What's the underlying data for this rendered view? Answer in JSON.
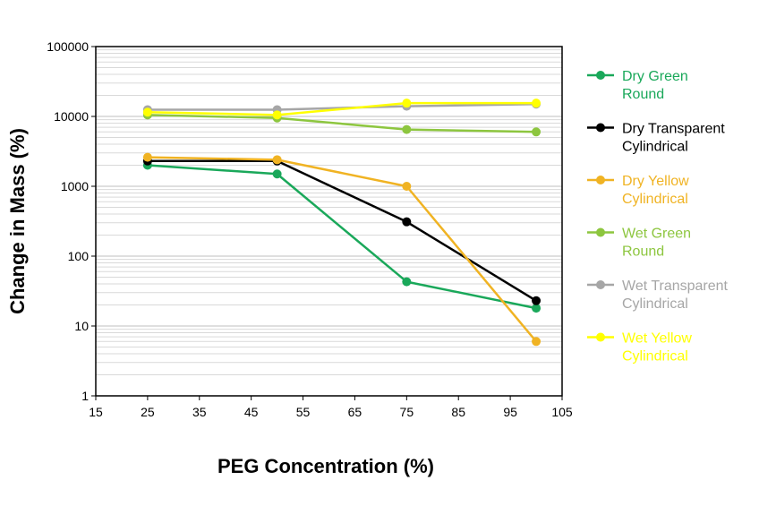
{
  "chart_data": {
    "type": "line",
    "title": "",
    "xlabel": "PEG Concentration (%)",
    "ylabel": "Change in Mass (%)",
    "xlim": [
      15,
      105
    ],
    "ylim": [
      1,
      100000
    ],
    "yscale": "log",
    "x_ticks": [
      "15",
      "25",
      "35",
      "45",
      "55",
      "65",
      "75",
      "85",
      "95",
      "105"
    ],
    "y_ticks": [
      "1",
      "10",
      "100",
      "1000",
      "10000",
      "100000"
    ],
    "grid": true,
    "legend_position": "right",
    "x": [
      25,
      50,
      75,
      100
    ],
    "series": [
      {
        "name": "Dry Green Round",
        "legend_lines": [
          "Dry Green",
          "Round"
        ],
        "color": "#1aa85a",
        "values": [
          2000,
          1500,
          43,
          18
        ]
      },
      {
        "name": "Dry Transparent Cylindrical",
        "legend_lines": [
          "Dry Transparent",
          "Cylindrical"
        ],
        "color": "#000000",
        "values": [
          2300,
          2300,
          310,
          23
        ]
      },
      {
        "name": "Dry Yellow Cylindrical",
        "legend_lines": [
          "Dry Yellow",
          "Cylindrical"
        ],
        "color": "#f0b323",
        "values": [
          2600,
          2400,
          1000,
          6
        ]
      },
      {
        "name": "Wet Green Round",
        "legend_lines": [
          "Wet Green",
          "Round"
        ],
        "color": "#8dc63f",
        "values": [
          10500,
          9500,
          6500,
          6000
        ]
      },
      {
        "name": "Wet Transparent Cylindrical",
        "legend_lines": [
          "Wet Transparent",
          "Cylindrical"
        ],
        "color": "#a6a6a6",
        "values": [
          12500,
          12500,
          14000,
          15000
        ]
      },
      {
        "name": "Wet Yellow Cylindrical",
        "legend_lines": [
          "Wet Yellow",
          "Cylindrical"
        ],
        "color": "#ffff00",
        "values": [
          11500,
          10500,
          15500,
          15500
        ]
      }
    ]
  }
}
